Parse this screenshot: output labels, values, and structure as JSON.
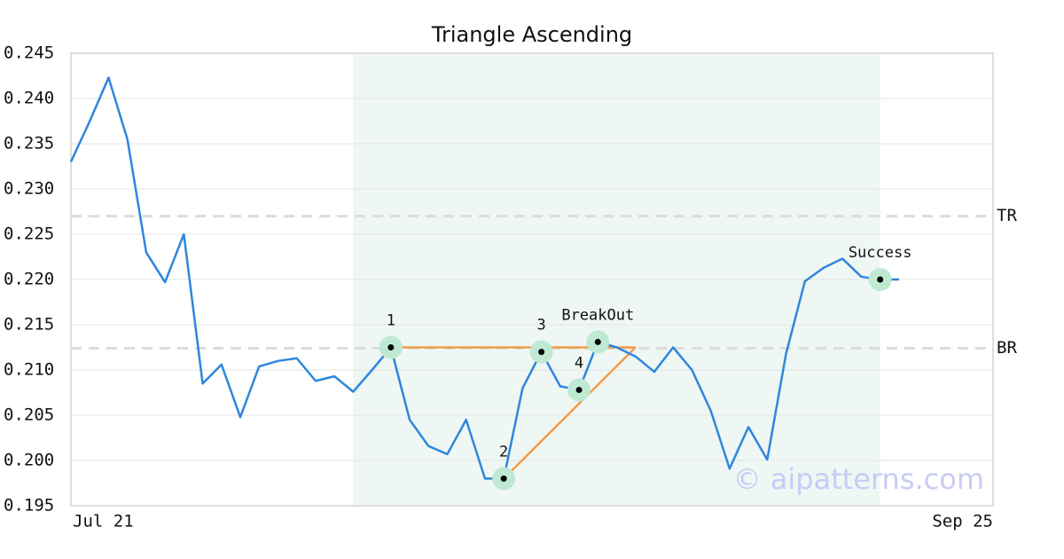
{
  "chart_data": {
    "type": "line",
    "title": "Triangle Ascending",
    "categories": [
      "Jul 21",
      null,
      null,
      null,
      null,
      null,
      null,
      null,
      null,
      null,
      null,
      null,
      null,
      null,
      null,
      null,
      null,
      null,
      null,
      null,
      null,
      null,
      null,
      null,
      null,
      null,
      null,
      null,
      null,
      null,
      null,
      null,
      null,
      null,
      null,
      null,
      null,
      null,
      null,
      null,
      null,
      null,
      null,
      null,
      null,
      null,
      null,
      null,
      null,
      "Sep 25"
    ],
    "series": [
      {
        "color": "#2e86de",
        "values": [
          0.233,
          0.2375,
          0.2423,
          0.2355,
          0.223,
          0.2197,
          0.225,
          0.2085,
          0.2106,
          0.2048,
          0.2104,
          0.211,
          0.2113,
          0.2088,
          0.2093,
          0.2076,
          0.21,
          0.2125,
          0.2045,
          0.2016,
          0.2007,
          0.2045,
          0.198,
          0.198,
          0.208,
          0.212,
          0.2082,
          0.2078,
          0.2131,
          0.2125,
          0.2115,
          0.2098,
          0.2125,
          0.21,
          0.2055,
          0.1991,
          0.2037,
          0.2001,
          0.2118,
          0.2198,
          0.2213,
          0.2223,
          0.2203,
          0.22,
          0.22,
          null,
          null,
          null,
          null,
          null
        ]
      }
    ],
    "ylim": [
      0.195,
      0.245
    ],
    "yticks": [
      0.195,
      {
        "value": 0.2,
        "label": "0.200"
      },
      0.205,
      {
        "value": 0.21,
        "label": "0.210"
      },
      0.215,
      {
        "value": 0.22,
        "label": "0.220"
      },
      0.225,
      {
        "value": 0.23,
        "label": "0.230"
      },
      0.235,
      {
        "value": 0.24,
        "label": "0.240"
      },
      0.245
    ],
    "grid": true,
    "highlight_range": [
      15,
      43
    ],
    "hlines": [
      {
        "label": "TR",
        "value": 0.227
      },
      {
        "label": "BR",
        "value": 0.2124
      }
    ],
    "points": [
      {
        "label": "1",
        "index": 17
      },
      {
        "label": "2",
        "index": 23
      },
      {
        "label": "3",
        "index": 25
      },
      {
        "label": "4",
        "index": 27
      },
      {
        "label": "BreakOut",
        "index": 28
      },
      {
        "label": "Success",
        "index": 43
      }
    ],
    "triangle": {
      "color": "#f39c45",
      "lines": [
        {
          "x": [
            17,
            30
          ],
          "y": [
            0.2125,
            0.2125
          ]
        },
        {
          "x": [
            23,
            30
          ],
          "y": [
            0.198,
            0.2125
          ]
        }
      ]
    },
    "watermark": "© aipatterns.com"
  }
}
